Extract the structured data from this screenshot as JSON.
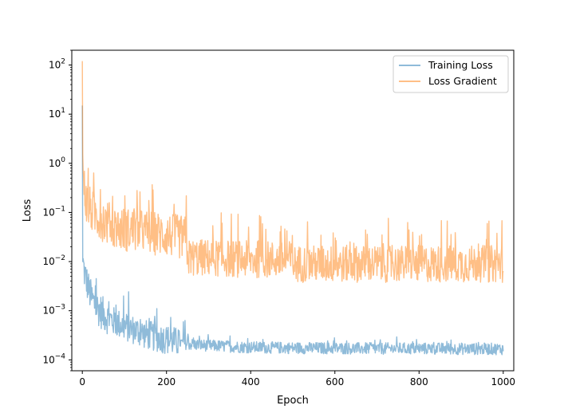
{
  "chart_data": {
    "type": "line",
    "title": "",
    "xlabel": "Epoch",
    "ylabel": "Loss",
    "xlim": [
      -25,
      1025
    ],
    "ylim": [
      6e-05,
      200
    ],
    "yscale": "log",
    "x_ticks": [
      0,
      200,
      400,
      600,
      800,
      1000
    ],
    "x_tick_labels": [
      "0",
      "200",
      "400",
      "600",
      "800",
      "1000"
    ],
    "y_ticks": [
      0.0001,
      0.001,
      0.01,
      0.1,
      1,
      10,
      100
    ],
    "y_tick_labels": [
      {
        "base": "10",
        "exp": "−4"
      },
      {
        "base": "10",
        "exp": "−3"
      },
      {
        "base": "10",
        "exp": "−2"
      },
      {
        "base": "10",
        "exp": "−1"
      },
      {
        "base": "10",
        "exp": "0"
      },
      {
        "base": "10",
        "exp": "1"
      },
      {
        "base": "10",
        "exp": "2"
      }
    ],
    "grid": false,
    "legend_position": "top-right",
    "series": [
      {
        "name": "Training Loss",
        "color": "#1f77b4",
        "alpha": 0.5,
        "x": [
          0,
          1,
          3,
          5,
          10,
          20,
          30,
          50,
          75,
          100,
          125,
          150,
          175,
          200,
          225,
          250,
          300,
          400,
          500,
          600,
          700,
          800,
          900,
          1000
        ],
        "values": [
          15,
          0.01,
          0.008,
          0.006,
          0.004,
          0.002,
          0.0013,
          0.00085,
          0.0006,
          0.00048,
          0.0004,
          0.00033,
          0.00029,
          0.00026,
          0.00023,
          0.00021,
          0.000195,
          0.00018,
          0.000175,
          0.000172,
          0.00017,
          0.00017,
          0.000168,
          0.000167
        ]
      },
      {
        "name": "Loss Gradient",
        "color": "#ff7f0e",
        "alpha": 0.5,
        "x": [
          0,
          1,
          2,
          5,
          10,
          25,
          50,
          75,
          100,
          150,
          200,
          248,
          250,
          300,
          400,
          495,
          500,
          600,
          700,
          800,
          900,
          1000
        ],
        "values": [
          120,
          1.5,
          0.6,
          0.3,
          0.15,
          0.1,
          0.07,
          0.05,
          0.045,
          0.04,
          0.035,
          0.03,
          0.012,
          0.012,
          0.011,
          0.011,
          0.009,
          0.009,
          0.009,
          0.009,
          0.009,
          0.009
        ]
      }
    ]
  }
}
